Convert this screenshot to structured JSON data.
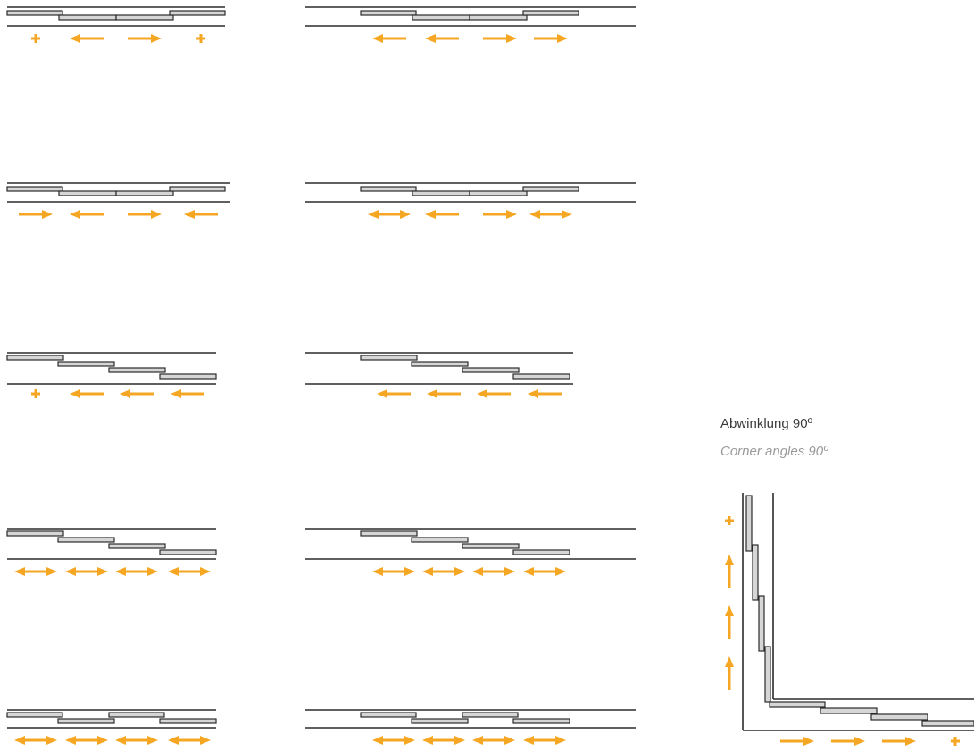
{
  "caption": {
    "title": "Abwinklung 90º",
    "subtitle": "Corner angles 90º"
  },
  "colors": {
    "line": "#2b2b2b",
    "plank_fill": "#d6d6d6",
    "arrow": "#f5a623"
  },
  "panels": [
    {
      "id": "r1-left",
      "pattern": "center",
      "arrows": [
        "plus",
        "left",
        "right",
        "plus"
      ]
    },
    {
      "id": "r1-right",
      "pattern": "center",
      "arrows": [
        "left",
        "left",
        "right",
        "right"
      ]
    },
    {
      "id": "r2-left",
      "pattern": "center",
      "arrows": [
        "right",
        "left",
        "right",
        "left"
      ]
    },
    {
      "id": "r2-right",
      "pattern": "center",
      "arrows": [
        "both",
        "left",
        "right",
        "both"
      ]
    },
    {
      "id": "r3-left",
      "pattern": "stair",
      "arrows": [
        "plus",
        "left",
        "left",
        "left"
      ]
    },
    {
      "id": "r3-right",
      "pattern": "stair",
      "arrows": [
        "left",
        "left",
        "left",
        "left"
      ]
    },
    {
      "id": "r4-left",
      "pattern": "stair",
      "arrows": [
        "both",
        "both",
        "both",
        "both"
      ]
    },
    {
      "id": "r4-right",
      "pattern": "stair",
      "arrows": [
        "both",
        "both",
        "both",
        "both"
      ]
    },
    {
      "id": "r5-left",
      "pattern": "alternate",
      "arrows": [
        "both",
        "both",
        "both",
        "both"
      ]
    },
    {
      "id": "r5-right",
      "pattern": "alternate",
      "arrows": [
        "both",
        "both",
        "both",
        "both"
      ]
    }
  ],
  "corner": {
    "vertical_arrows": [
      "plus",
      "up",
      "up",
      "up"
    ],
    "horizontal_arrows": [
      "right",
      "right",
      "right",
      "plus"
    ]
  }
}
